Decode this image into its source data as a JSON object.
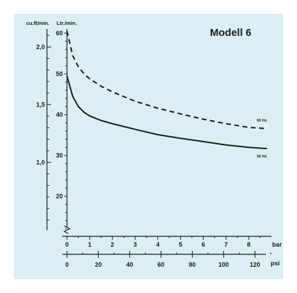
{
  "chart_data": {
    "type": "line",
    "title": "Modell 6",
    "left_axis": {
      "label": "cu.ft/min.",
      "ticks": [
        "2,0",
        "1,5",
        "1,0"
      ],
      "tick_values_ltr": [
        56.6,
        42.5,
        28.3
      ]
    },
    "right_axis": {
      "label": "Ltr./min.",
      "ylim": [
        10,
        60
      ],
      "ticks": [
        "60",
        "50",
        "40",
        "30",
        "20"
      ],
      "tick_values": [
        60,
        50,
        40,
        30,
        20
      ]
    },
    "x_axis_bar": {
      "unit": "bar",
      "xlim": [
        0,
        9
      ],
      "ticks": [
        "0",
        "1",
        "2",
        "3",
        "4",
        "5",
        "6",
        "7",
        "8"
      ],
      "tick_values": [
        0,
        1,
        2,
        3,
        4,
        5,
        6,
        7,
        8
      ]
    },
    "x_axis_psi": {
      "unit": "psi",
      "ticks": [
        "0",
        "20",
        "40",
        "60",
        "80",
        "100",
        "120"
      ],
      "tick_values": [
        0,
        20,
        40,
        60,
        80,
        100,
        120
      ]
    },
    "series": [
      {
        "name": "60 Hz",
        "style": "dashed",
        "x": [
          0,
          0.25,
          0.5,
          0.75,
          1,
          1.5,
          2,
          3,
          4,
          5,
          6,
          7,
          8,
          8.8
        ],
        "y": [
          60.5,
          54.5,
          51.8,
          50.0,
          48.8,
          47.0,
          45.6,
          43.3,
          41.6,
          40.2,
          38.9,
          37.8,
          36.9,
          36.6
        ]
      },
      {
        "name": "50 Hz",
        "style": "solid",
        "x": [
          0,
          0.25,
          0.5,
          0.75,
          1,
          1.5,
          2,
          3,
          4,
          5,
          6,
          7,
          8,
          8.8
        ],
        "y": [
          49.5,
          44.5,
          42.0,
          40.6,
          39.7,
          38.6,
          37.8,
          36.4,
          35.1,
          34.2,
          33.4,
          32.6,
          32.0,
          31.7
        ]
      }
    ]
  }
}
